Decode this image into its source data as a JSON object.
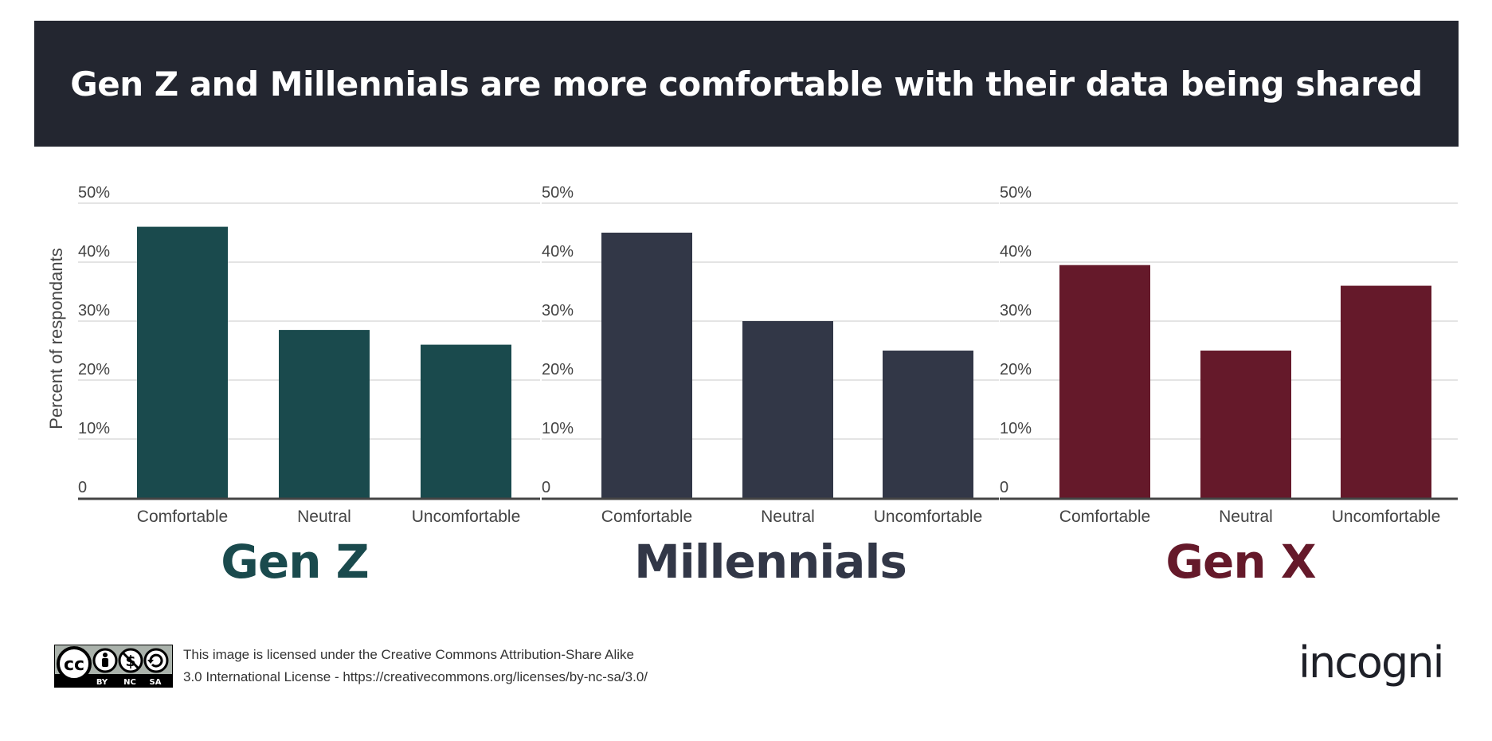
{
  "header": {
    "title": "Gen Z and Millennials are more comfortable with their data being shared"
  },
  "chart_data": [
    {
      "type": "bar",
      "title": "Gen Z",
      "categories": [
        "Comfortable",
        "Neutral",
        "Uncomfortable"
      ],
      "values": [
        46,
        28.5,
        26
      ],
      "ylabel": "Percent of respondants",
      "ylim": [
        0,
        50
      ],
      "yticks": [
        "0",
        "10%",
        "20%",
        "30%",
        "40%",
        "50%"
      ],
      "color": "#1a4a4d"
    },
    {
      "type": "bar",
      "title": "Millennials",
      "categories": [
        "Comfortable",
        "Neutral",
        "Uncomfortable"
      ],
      "values": [
        45,
        30,
        25
      ],
      "ylabel": "",
      "ylim": [
        0,
        50
      ],
      "yticks": [
        "0",
        "10%",
        "20%",
        "30%",
        "40%",
        "50%"
      ],
      "color": "#323747"
    },
    {
      "type": "bar",
      "title": "Gen X",
      "categories": [
        "Comfortable",
        "Neutral",
        "Uncomfortable"
      ],
      "values": [
        39.5,
        25,
        36
      ],
      "ylabel": "",
      "ylim": [
        0,
        50
      ],
      "yticks": [
        "0",
        "10%",
        "20%",
        "30%",
        "40%",
        "50%"
      ],
      "color": "#65192a"
    }
  ],
  "footer": {
    "license_line1": "This image is licensed under the Creative Commons Attribution-Share Alike",
    "license_line2": "3.0 International License - https://creativecommons.org/licenses/by-nc-sa/3.0/",
    "cc_badge": {
      "cc": "cc",
      "by": "BY",
      "nc": "NC",
      "sa": "SA"
    },
    "logo": "incogni"
  }
}
